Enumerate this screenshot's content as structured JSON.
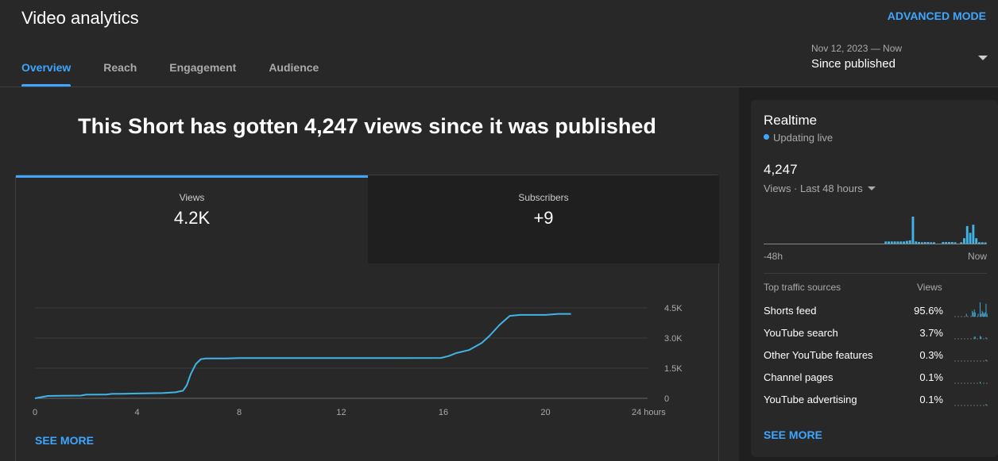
{
  "header": {
    "title": "Video analytics",
    "advanced_mode": "ADVANCED MODE",
    "tabs": [
      {
        "label": "Overview",
        "active": true
      },
      {
        "label": "Reach",
        "active": false
      },
      {
        "label": "Engagement",
        "active": false
      },
      {
        "label": "Audience",
        "active": false
      }
    ],
    "date_range": "Nov 12, 2023 — Now",
    "date_label": "Since published"
  },
  "main": {
    "headline": "This Short has gotten 4,247 views since it was published",
    "metrics": [
      {
        "label": "Views",
        "value": "4.2K"
      },
      {
        "label": "Subscribers",
        "value": "+9"
      }
    ],
    "see_more": "SEE MORE"
  },
  "chart_data": {
    "type": "line",
    "title": "",
    "xlabel": "",
    "ylabel": "",
    "xlim": [
      0,
      24
    ],
    "ylim": [
      0,
      4500
    ],
    "x_ticks": [
      "0",
      "4",
      "8",
      "12",
      "16",
      "20",
      "24 hours"
    ],
    "y_ticks": [
      "0",
      "1.5K",
      "3.0K",
      "4.5K"
    ],
    "grid": true,
    "color": "#40b4e5",
    "series": [
      {
        "x": [
          0,
          0.5,
          1,
          1.8,
          2,
          2.8,
          3,
          3.5,
          4,
          5,
          5.5,
          5.8,
          5.95,
          6.1,
          6.3,
          6.5,
          6.7,
          7,
          7.5,
          8,
          9,
          10,
          12,
          14,
          15.9,
          16.2,
          16.5,
          17,
          17.5,
          17.8,
          18.2,
          18.6,
          19,
          20,
          20.5,
          21
        ],
        "y": [
          0,
          120,
          130,
          140,
          180,
          190,
          220,
          230,
          240,
          260,
          300,
          380,
          650,
          1200,
          1700,
          1950,
          1980,
          1980,
          1985,
          2000,
          2000,
          2000,
          2000,
          2000,
          2010,
          2100,
          2250,
          2400,
          2750,
          3100,
          3650,
          4100,
          4150,
          4150,
          4200,
          4200
        ]
      }
    ]
  },
  "realtime": {
    "title": "Realtime",
    "live": "Updating live",
    "count": "4,247",
    "period": "Views · Last 48 hours",
    "axis_start": "-48h",
    "axis_end": "Now",
    "sparkline": [
      0,
      0,
      0,
      0,
      0,
      0,
      0,
      0,
      0,
      0,
      0,
      0,
      0,
      0,
      0,
      0,
      0,
      0,
      0,
      0,
      0,
      0,
      0,
      0,
      0,
      0,
      0,
      0,
      0,
      0,
      0,
      0,
      0,
      0,
      0,
      0,
      0,
      0,
      0,
      0,
      0.08,
      0.08,
      0.08,
      0.08,
      0.08,
      0.08,
      0.08,
      0.1,
      0.12,
      1.0,
      0.08,
      0.06,
      0.05,
      0.06,
      0.06,
      0.05,
      0.05,
      0,
      0,
      0.06,
      0.06,
      0.06,
      0.06,
      0.05,
      0,
      0.05,
      0.2,
      0.65,
      0.4,
      0.7,
      0.2,
      0.05,
      0.05,
      0.04
    ],
    "sources_header": "Top traffic sources",
    "sources_col": "Views",
    "sources": [
      {
        "name": "Shorts feed",
        "pct": "95.6%",
        "spark": [
          0,
          0,
          0,
          0,
          0,
          0,
          0,
          0,
          0,
          0,
          0,
          0,
          0.2,
          0,
          0,
          0,
          0,
          0,
          0.4,
          0.3,
          0.5,
          0.3,
          0,
          0,
          0.2,
          0,
          1.0,
          0.2,
          0.4,
          0.3,
          0.2,
          0.3,
          0.9,
          0.2
        ]
      },
      {
        "name": "YouTube search",
        "pct": "3.7%",
        "spark": [
          0,
          0,
          0,
          0,
          0,
          0,
          0,
          0,
          0,
          0,
          0,
          0,
          0,
          0,
          0,
          0,
          0,
          0,
          0,
          0,
          0.15,
          0.15,
          0,
          0,
          0,
          0,
          0.2,
          0.15,
          0,
          0,
          0,
          0,
          0.1,
          0
        ]
      },
      {
        "name": "Other YouTube features",
        "pct": "0.3%",
        "spark": [
          0,
          0,
          0,
          0,
          0,
          0,
          0,
          0,
          0,
          0,
          0,
          0,
          0,
          0,
          0,
          0,
          0,
          0,
          0,
          0,
          0,
          0,
          0,
          0,
          0,
          0,
          0,
          0,
          0,
          0,
          0,
          0,
          0.1,
          0
        ]
      },
      {
        "name": "Channel pages",
        "pct": "0.1%",
        "spark": [
          0,
          0,
          0,
          0,
          0,
          0,
          0,
          0,
          0,
          0,
          0,
          0,
          0,
          0,
          0,
          0,
          0,
          0,
          0,
          0,
          0,
          0,
          0,
          0,
          0,
          0,
          0.1,
          0,
          0,
          0,
          0,
          0,
          0,
          0
        ]
      },
      {
        "name": "YouTube advertising",
        "pct": "0.1%",
        "spark": [
          0,
          0,
          0,
          0,
          0,
          0,
          0,
          0,
          0,
          0,
          0,
          0,
          0,
          0,
          0,
          0,
          0,
          0,
          0,
          0,
          0,
          0,
          0,
          0,
          0,
          0,
          0,
          0,
          0,
          0,
          0,
          0,
          0.1,
          0
        ]
      }
    ],
    "see_more": "SEE MORE"
  }
}
